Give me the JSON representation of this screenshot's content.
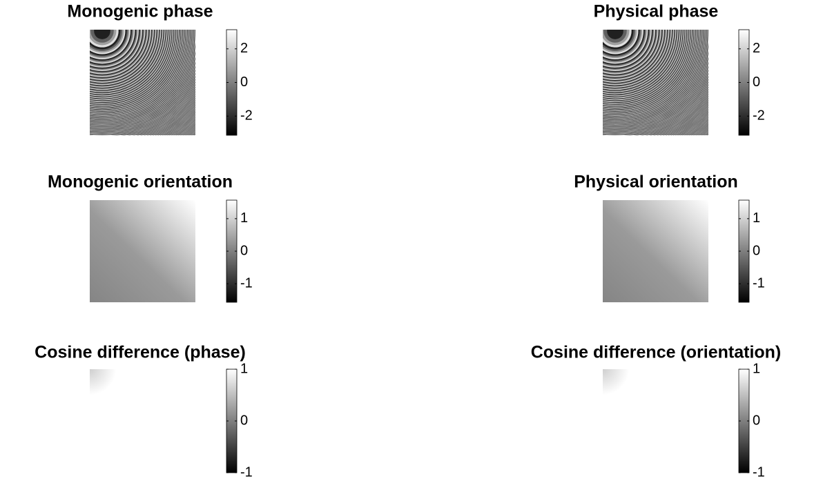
{
  "chart_data": [
    {
      "type": "image",
      "title": "Monogenic phase",
      "colormap": "gray",
      "clim": [
        -3.14,
        3.14
      ],
      "cticks": [
        -2,
        0,
        2
      ]
    },
    {
      "type": "image",
      "title": "Physical phase",
      "colormap": "gray",
      "clim": [
        -3.14,
        3.14
      ],
      "cticks": [
        -2,
        0,
        2
      ]
    },
    {
      "type": "image",
      "title": "Monogenic orientation",
      "colormap": "gray",
      "clim": [
        -1.57,
        1.57
      ],
      "cticks": [
        -1,
        0,
        1
      ]
    },
    {
      "type": "image",
      "title": "Physical orientation",
      "colormap": "gray",
      "clim": [
        -1.57,
        1.57
      ],
      "cticks": [
        -1,
        0,
        1
      ]
    },
    {
      "type": "image",
      "title": "Cosine difference (phase)",
      "colormap": "gray",
      "clim": [
        -1,
        1
      ],
      "cticks": [
        -1,
        0,
        1
      ]
    },
    {
      "type": "image",
      "title": "Cosine difference (orientation)",
      "colormap": "gray",
      "clim": [
        -1,
        1
      ],
      "cticks": [
        -1,
        0,
        1
      ]
    }
  ]
}
